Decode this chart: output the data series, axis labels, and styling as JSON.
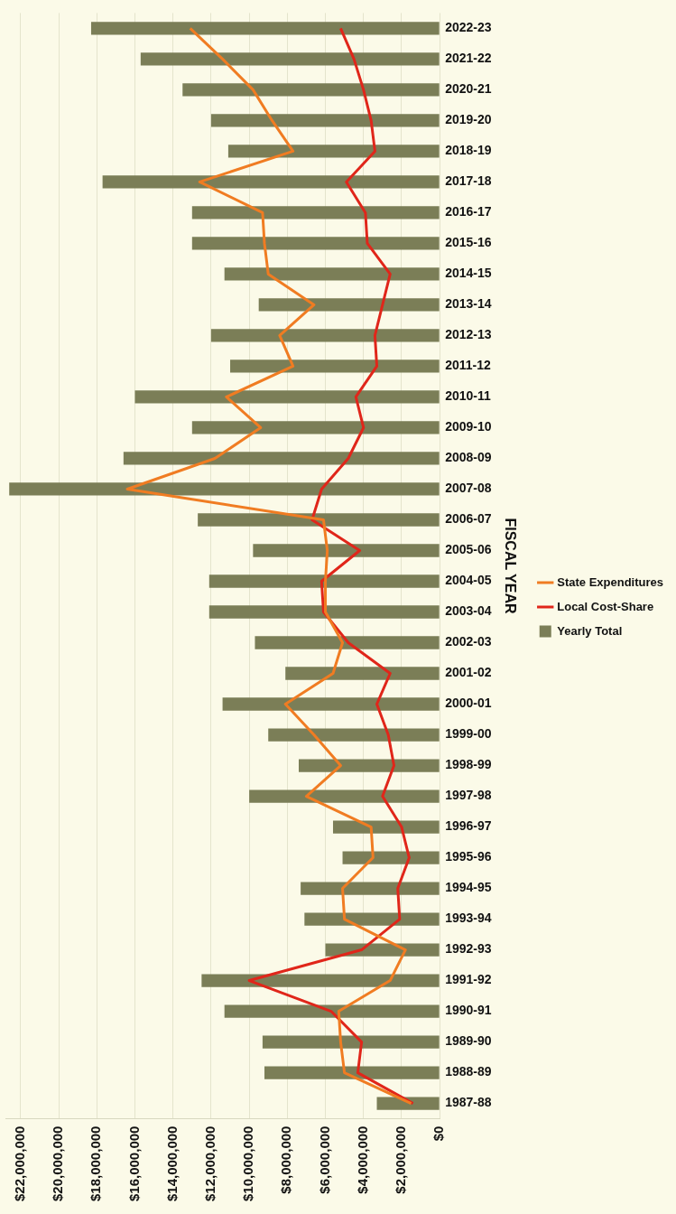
{
  "chart_data": {
    "type": "bar",
    "orientation": "horizontal",
    "ylabel": "FISCAL YEAR",
    "categories": [
      "2022-23",
      "2021-22",
      "2020-21",
      "2019-20",
      "2018-19",
      "2017-18",
      "2016-17",
      "2015-16",
      "2014-15",
      "2013-14",
      "2012-13",
      "2011-12",
      "2010-11",
      "2009-10",
      "2008-09",
      "2007-08",
      "2006-07",
      "2005-06",
      "2004-05",
      "2003-04",
      "2002-03",
      "2001-02",
      "2000-01",
      "1999-00",
      "1998-99",
      "1997-98",
      "1996-97",
      "1995-96",
      "1994-95",
      "1993-94",
      "1992-93",
      "1991-92",
      "1990-91",
      "1989-90",
      "1988-89",
      "1987-88"
    ],
    "series": [
      {
        "name": "Yearly Total",
        "color": "#7b7e57",
        "values": [
          18300000,
          15700000,
          13500000,
          12000000,
          11100000,
          17700000,
          13000000,
          13000000,
          11300000,
          9500000,
          12000000,
          11000000,
          16000000,
          13000000,
          16600000,
          22600000,
          12700000,
          9800000,
          12100000,
          12100000,
          9700000,
          8100000,
          11400000,
          9000000,
          7400000,
          10000000,
          5600000,
          5100000,
          7300000,
          7100000,
          6000000,
          12500000,
          11300000,
          9300000,
          9200000,
          3300000
        ]
      },
      {
        "name": "State Expenditures",
        "type": "line",
        "color": "#f07c22",
        "values": [
          13100000,
          11400000,
          9800000,
          8800000,
          7700000,
          12600000,
          9300000,
          9200000,
          9000000,
          6600000,
          8400000,
          7700000,
          11200000,
          9400000,
          11800000,
          16400000,
          6100000,
          5900000,
          6000000,
          6000000,
          5100000,
          5600000,
          8100000,
          6600000,
          5200000,
          7000000,
          3600000,
          3500000,
          5100000,
          5000000,
          1800000,
          2600000,
          5300000,
          5200000,
          5000000,
          1500000
        ]
      },
      {
        "name": "Local Cost-Share",
        "type": "line",
        "color": "#e0261a",
        "values": [
          5200000,
          4500000,
          4000000,
          3600000,
          3400000,
          4900000,
          3900000,
          3800000,
          2600000,
          3000000,
          3400000,
          3300000,
          4400000,
          4000000,
          4800000,
          6200000,
          6700000,
          4200000,
          6200000,
          6100000,
          4800000,
          2600000,
          3300000,
          2700000,
          2400000,
          3000000,
          2000000,
          1600000,
          2200000,
          2100000,
          4100000,
          10000000,
          5700000,
          4100000,
          4300000,
          1400000
        ]
      }
    ],
    "xlim": [
      22800000,
      0
    ],
    "xticks": [
      {
        "value": 0,
        "label": "$0"
      },
      {
        "value": 2000000,
        "label": "$2,000,000"
      },
      {
        "value": 4000000,
        "label": "$4,000,000"
      },
      {
        "value": 6000000,
        "label": "$6,000,000"
      },
      {
        "value": 8000000,
        "label": "$8,000,000"
      },
      {
        "value": 10000000,
        "label": "$10,000,000"
      },
      {
        "value": 12000000,
        "label": "$12,000,000"
      },
      {
        "value": 14000000,
        "label": "$14,000,000"
      },
      {
        "value": 16000000,
        "label": "$16,000,000"
      },
      {
        "value": 18000000,
        "label": "$18,000,000"
      },
      {
        "value": 20000000,
        "label": "$20,000,000"
      },
      {
        "value": 22000000,
        "label": "$22,000,000"
      }
    ],
    "grid": "x",
    "legend": "right",
    "marker": "none",
    "line_style": "solid"
  }
}
